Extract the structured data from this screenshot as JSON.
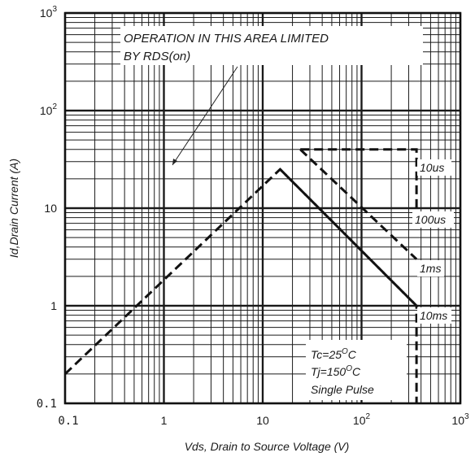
{
  "chart_data": {
    "type": "line",
    "xscale": "log",
    "yscale": "log",
    "xlim": [
      0.1,
      1000
    ],
    "ylim": [
      0.1,
      1000
    ],
    "xlabel": "Vds, Drain to Source Voltage (V)",
    "ylabel": "Id,Drain Current (A)",
    "x_ticks": [
      {
        "value": 0.1,
        "mant": "0.1",
        "exp": ""
      },
      {
        "value": 1,
        "mant": "1",
        "exp": ""
      },
      {
        "value": 10,
        "mant": "10",
        "exp": ""
      },
      {
        "value": 100,
        "mant": "10",
        "exp": "2"
      },
      {
        "value": 1000,
        "mant": "10",
        "exp": "3"
      }
    ],
    "y_ticks": [
      {
        "value": 0.1,
        "mant": "0.1",
        "exp": ""
      },
      {
        "value": 1,
        "mant": "1",
        "exp": ""
      },
      {
        "value": 10,
        "mant": "10",
        "exp": ""
      },
      {
        "value": 100,
        "mant": "10",
        "exp": "2"
      },
      {
        "value": 1000,
        "mant": "10",
        "exp": "3"
      }
    ],
    "grid": true,
    "series": [
      {
        "name": "10us",
        "x": [
          24,
          360,
          360
        ],
        "y": [
          40,
          40,
          10
        ]
      },
      {
        "name": "100us",
        "x": [
          24,
          360
        ],
        "y": [
          40,
          3
        ]
      },
      {
        "name": "1ms",
        "x": [
          15,
          360
        ],
        "y": [
          25,
          1
        ]
      },
      {
        "name": "10ms",
        "x": [
          0.1,
          15,
          360,
          360
        ],
        "y": [
          0.2,
          25,
          1,
          0.1
        ]
      }
    ],
    "annotations": {
      "rds_line1": "OPERATION IN THIS AREA LIMITED",
      "rds_line2": "BY RDS(on)",
      "cond_tc": "Tc=25",
      "cond_tj": "Tj=150",
      "cond_unit": "O",
      "cond_c": "C",
      "cond_pulse": "Single Pulse"
    }
  }
}
